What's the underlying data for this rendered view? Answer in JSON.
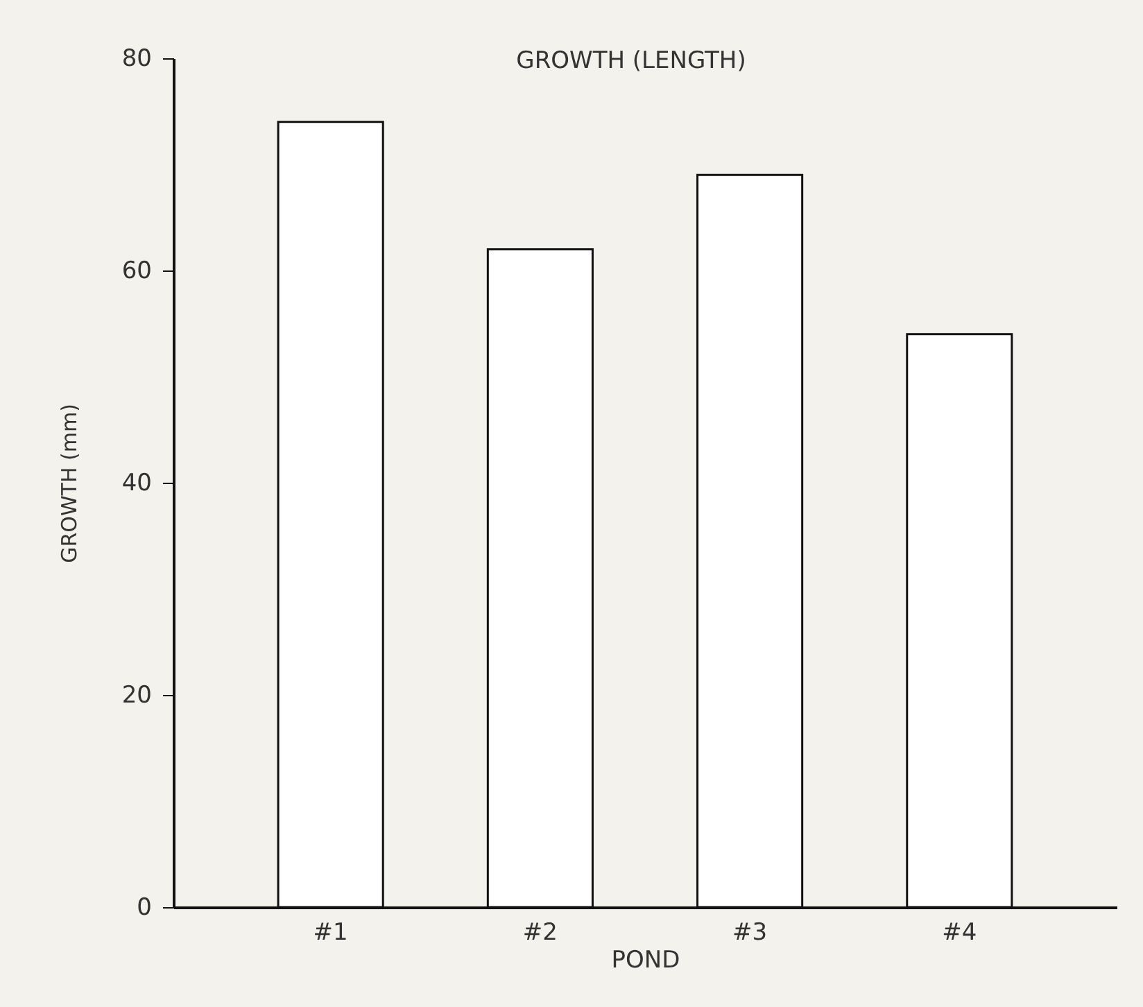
{
  "chart_data": {
    "type": "bar",
    "title": "GROWTH (LENGTH)",
    "xlabel": "POND",
    "ylabel": "GROWTH (mm)",
    "categories": [
      "#1",
      "#2",
      "#3",
      "#4"
    ],
    "values": [
      74,
      62,
      69,
      54
    ],
    "color": "#ffffff",
    "ylim": [
      0,
      80
    ],
    "yticks": [
      0,
      20,
      40,
      60,
      80
    ],
    "grid": false
  }
}
